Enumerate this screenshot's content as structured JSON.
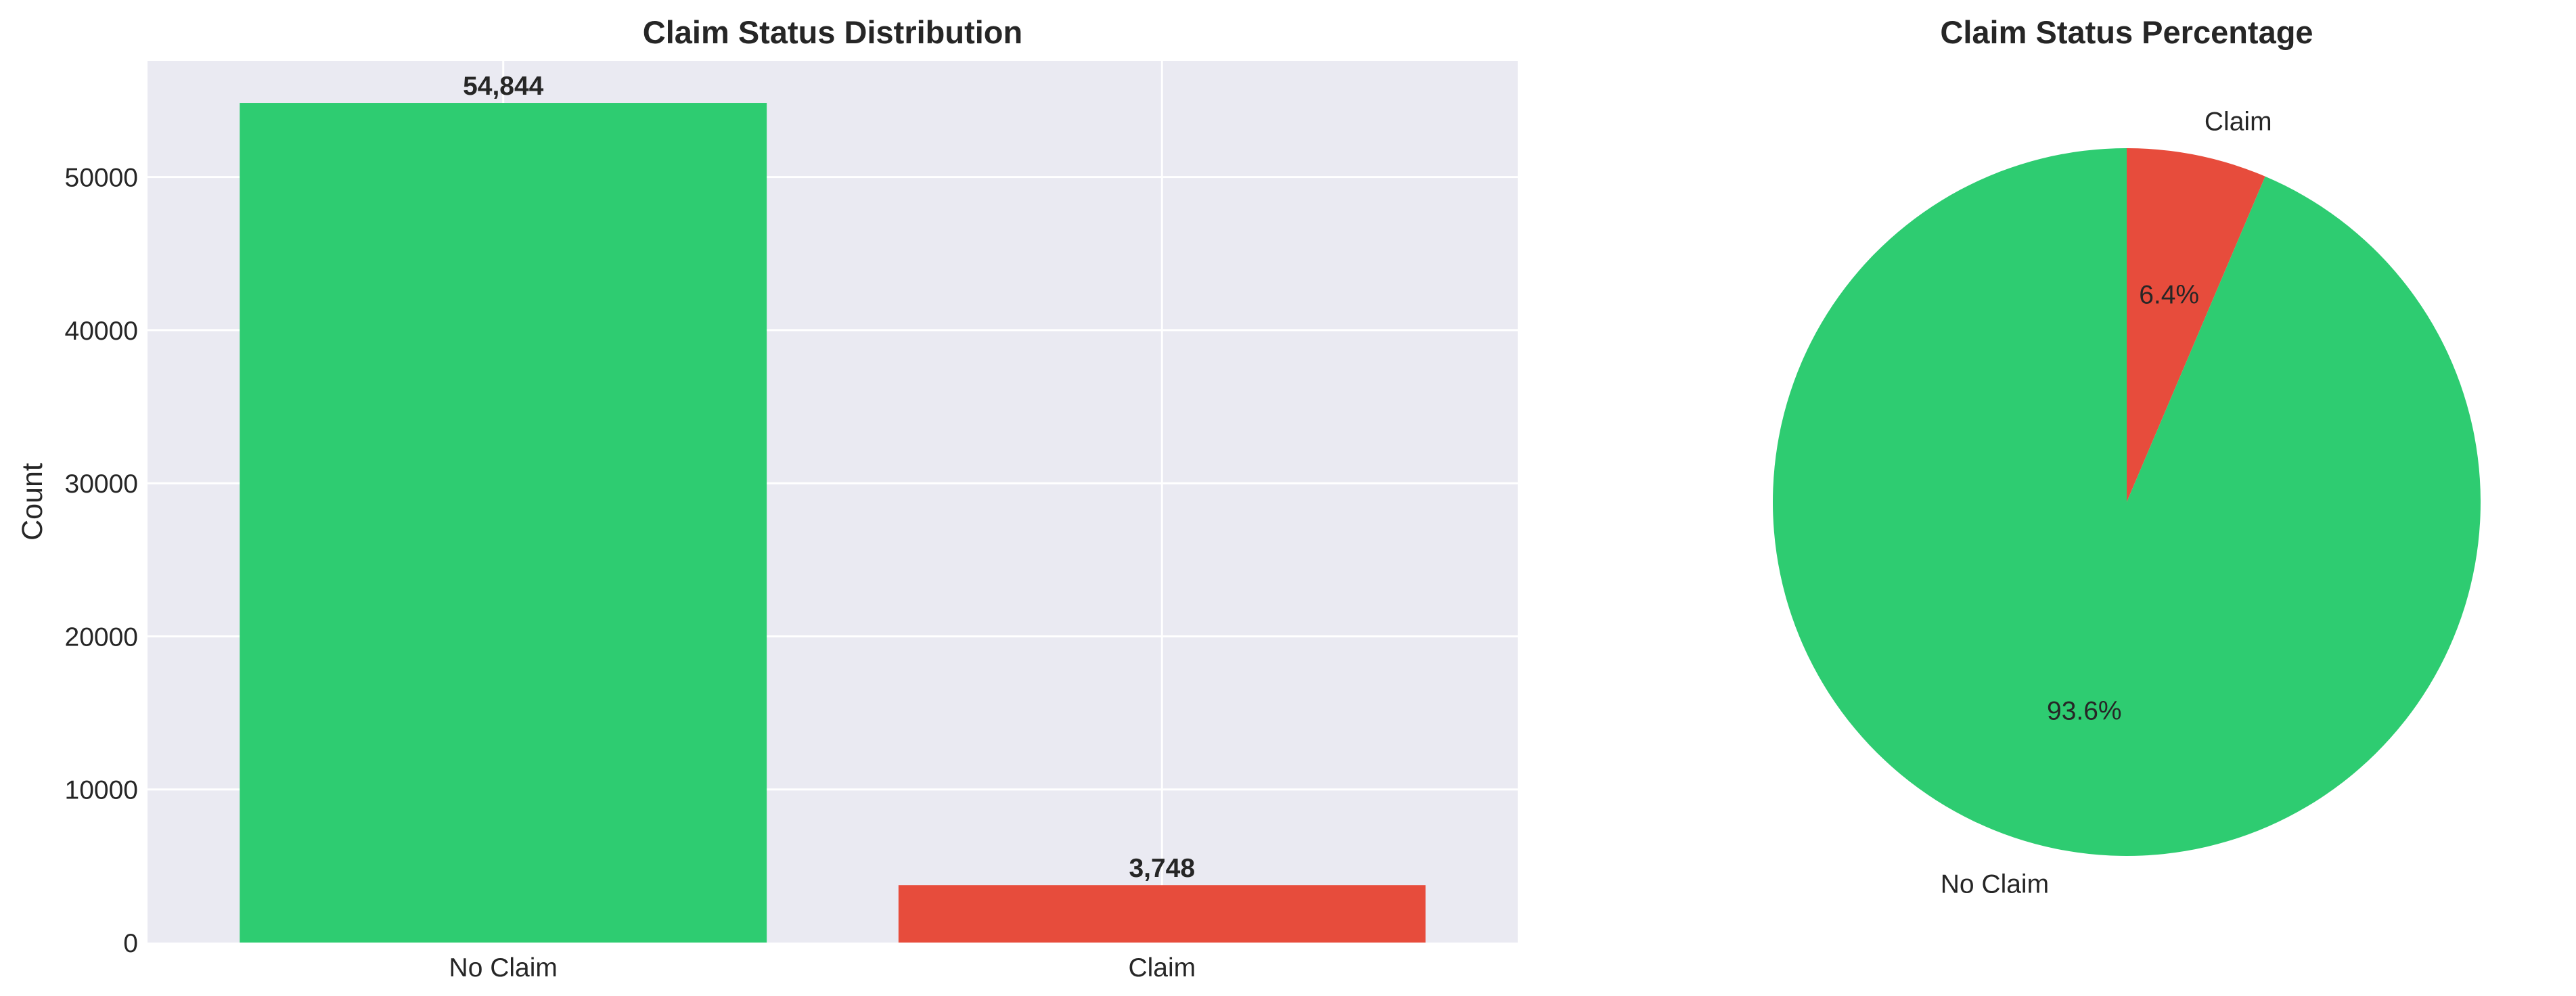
{
  "chart_data": [
    {
      "type": "bar",
      "title": "Claim Status Distribution",
      "xlabel": "",
      "ylabel": "Count",
      "categories": [
        "No Claim",
        "Claim"
      ],
      "values": [
        54844,
        3748
      ],
      "data_labels": [
        "54,844",
        "3,748"
      ],
      "colors": [
        "#2ecc71",
        "#e74c3c"
      ],
      "ylim": [
        0,
        57586
      ],
      "yticks": [
        0,
        10000,
        20000,
        30000,
        40000,
        50000
      ],
      "ytick_labels": [
        "0",
        "10000",
        "20000",
        "30000",
        "40000",
        "50000"
      ],
      "grid": true,
      "background": "#eaeaf2"
    },
    {
      "type": "pie",
      "title": "Claim Status Percentage",
      "slices": [
        {
          "label": "No Claim",
          "value": 93.6,
          "pct_label": "93.6%",
          "color": "#2ecc71"
        },
        {
          "label": "Claim",
          "value": 6.4,
          "pct_label": "6.4%",
          "color": "#e74c3c"
        }
      ]
    }
  ]
}
